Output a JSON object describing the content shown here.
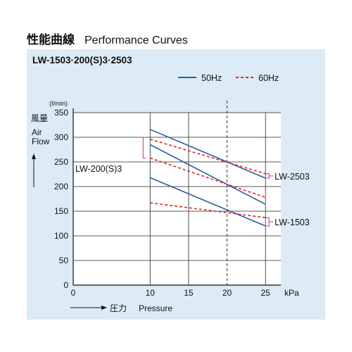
{
  "heading": {
    "jp": "性能曲線",
    "en": "Performance Curves"
  },
  "chart_data": {
    "type": "line",
    "title": "LW-1503·200(S)3·2503",
    "unit_label": "(ℓ/min)",
    "ylabel_jp": "風量",
    "ylabel_en_1": "Air",
    "ylabel_en_2": "Flow",
    "xlabel_jp": "圧力",
    "xlabel_en": "Pressure",
    "xunit": "kPa",
    "xlim": [
      0,
      27
    ],
    "ylim": [
      0,
      350
    ],
    "xticks": [
      0,
      10,
      15,
      20,
      25
    ],
    "yticks": [
      0,
      50,
      100,
      150,
      200,
      250,
      300,
      350
    ],
    "reference_x": 20,
    "legend": [
      {
        "label": "50Hz",
        "color": "#2b5fa0",
        "dash": "solid"
      },
      {
        "label": "60Hz",
        "color": "#e3261c",
        "dash": "dashed"
      }
    ],
    "series": [
      {
        "model": "LW-2503",
        "freq": "50Hz",
        "x": [
          10,
          25
        ],
        "y": [
          316,
          217
        ]
      },
      {
        "model": "LW-2503",
        "freq": "60Hz",
        "x": [
          10,
          25
        ],
        "y": [
          296,
          226
        ]
      },
      {
        "model": "LW-200(S)3",
        "freq": "50Hz",
        "x": [
          10,
          25
        ],
        "y": [
          285,
          164
        ]
      },
      {
        "model": "LW-200(S)3",
        "freq": "60Hz",
        "x": [
          10,
          25
        ],
        "y": [
          258,
          178
        ]
      },
      {
        "model": "LW-1503",
        "freq": "50Hz",
        "x": [
          10,
          25
        ],
        "y": [
          218,
          120
        ]
      },
      {
        "model": "LW-1503",
        "freq": "60Hz",
        "x": [
          10,
          25
        ],
        "y": [
          167,
          137
        ]
      }
    ],
    "labels": [
      {
        "text": "LW-2503",
        "x": 25,
        "y_pair": [
          217,
          226
        ]
      },
      {
        "text": "LW-200(S)3",
        "x": 10,
        "y_pair": [
          285,
          258
        ]
      },
      {
        "text": "LW-1503",
        "x": 25,
        "y_pair": [
          120,
          137
        ]
      }
    ]
  }
}
